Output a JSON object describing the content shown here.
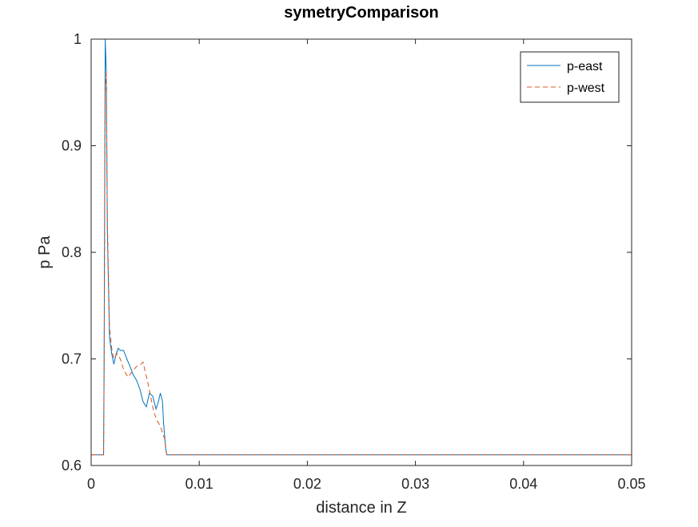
{
  "chart_data": {
    "type": "line",
    "title": "symetryComparison",
    "xlabel": "distance in Z",
    "ylabel": "p Pa",
    "xlim": [
      0,
      0.05
    ],
    "ylim": [
      0.6,
      1.0
    ],
    "xticks": [
      0,
      0.01,
      0.02,
      0.03,
      0.04,
      0.05
    ],
    "xtick_labels": [
      "0",
      "0.01",
      "0.02",
      "0.03",
      "0.04",
      "0.05"
    ],
    "yticks": [
      0.6,
      0.7,
      0.8,
      0.9,
      1.0
    ],
    "ytick_labels": [
      "0.6",
      "0.7",
      "0.8",
      "0.9",
      "1"
    ],
    "grid": false,
    "legend_position": "top-right",
    "series": [
      {
        "name": "p-east",
        "color": "#0072bd",
        "dash": "solid",
        "x": [
          0,
          0.00115,
          0.0012,
          0.0013,
          0.0014,
          0.0015,
          0.0017,
          0.0019,
          0.0021,
          0.0023,
          0.0025,
          0.0027,
          0.003,
          0.0033,
          0.0036,
          0.0039,
          0.0042,
          0.0045,
          0.0048,
          0.0051,
          0.0054,
          0.0057,
          0.006,
          0.0062,
          0.0064,
          0.0066,
          0.0067,
          0.0069,
          0.007,
          0.05
        ],
        "y": [
          0.61,
          0.61,
          0.7,
          1.0,
          0.97,
          0.82,
          0.72,
          0.705,
          0.695,
          0.704,
          0.71,
          0.708,
          0.708,
          0.7,
          0.693,
          0.685,
          0.68,
          0.672,
          0.66,
          0.655,
          0.668,
          0.665,
          0.653,
          0.659,
          0.668,
          0.66,
          0.64,
          0.615,
          0.61,
          0.61
        ]
      },
      {
        "name": "p-west",
        "color": "#d95319",
        "dash": "dashed",
        "x": [
          0,
          0.00115,
          0.0012,
          0.0013,
          0.0014,
          0.0015,
          0.0017,
          0.0019,
          0.0021,
          0.0024,
          0.0027,
          0.003,
          0.0034,
          0.0038,
          0.0042,
          0.0046,
          0.0048,
          0.005,
          0.0052,
          0.0055,
          0.0058,
          0.0061,
          0.0064,
          0.0068,
          0.007,
          0.05
        ],
        "y": [
          0.61,
          0.61,
          0.68,
          0.95,
          0.97,
          0.83,
          0.73,
          0.71,
          0.7,
          0.705,
          0.7,
          0.69,
          0.683,
          0.688,
          0.693,
          0.695,
          0.697,
          0.688,
          0.68,
          0.665,
          0.65,
          0.642,
          0.637,
          0.625,
          0.61,
          0.61
        ]
      }
    ]
  }
}
